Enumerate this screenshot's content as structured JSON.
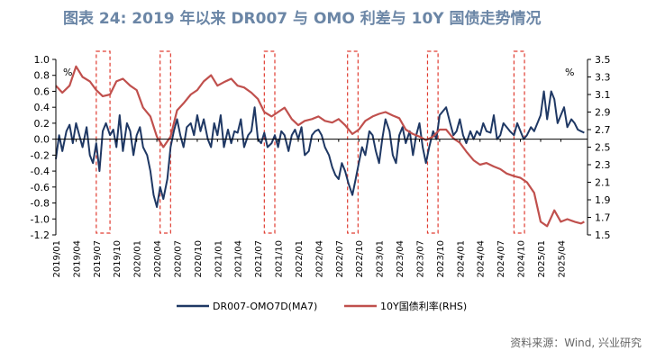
{
  "title": "图表 24: 2019 年以来 DR007 与 OMO 利差与 10Y 国债走势情况",
  "source": "资料来源：Wind, 兴业研究",
  "chart_data": {
    "type": "line",
    "title": "图表 24: 2019 年以来 DR007 与 OMO 利差与 10Y 国债走势情况",
    "left_unit": "%",
    "right_unit": "%",
    "ylim_left": [
      -1.2,
      1.0
    ],
    "ylim_right": [
      1.5,
      3.5
    ],
    "yticks_left": [
      "1.0",
      "0.8",
      "0.6",
      "0.4",
      "0.2",
      "0.0",
      "-0.2",
      "-0.4",
      "-0.6",
      "-0.8",
      "-1.0",
      "-1.2"
    ],
    "yticks_right": [
      "3.5",
      "3.3",
      "3.1",
      "2.9",
      "2.7",
      "2.5",
      "2.3",
      "2.1",
      "1.9",
      "1.7",
      "1.5"
    ],
    "x_ticks": [
      "2019/01",
      "2019/04",
      "2019/07",
      "2019/10",
      "2020/01",
      "2020/04",
      "2020/07",
      "2020/10",
      "2021/01",
      "2021/04",
      "2021/07",
      "2021/10",
      "2022/01",
      "2022/04",
      "2022/07",
      "2022/10",
      "2023/01",
      "2023/04",
      "2023/07",
      "2023/10",
      "2024/01",
      "2024/04",
      "2024/07",
      "2024/10",
      "2025/01",
      "2025/04"
    ],
    "x_range": [
      2019.0,
      2025.58
    ],
    "grid": false,
    "legend_position": "bottom",
    "highlight_periods": [
      [
        2019.5,
        2019.67
      ],
      [
        2020.29,
        2020.42
      ],
      [
        2021.58,
        2021.71
      ],
      [
        2022.61,
        2022.74
      ],
      [
        2023.6,
        2023.73
      ],
      [
        2024.67,
        2024.8
      ]
    ],
    "colors": {
      "spread": "#1f3864",
      "yield": "#c0504d",
      "highlight": "#e03c31",
      "axis": "#000000"
    },
    "series": [
      {
        "name": "DR007-OMO7D(MA7)",
        "axis": "left",
        "x": [
          2019.0,
          2019.04,
          2019.08,
          2019.13,
          2019.17,
          2019.21,
          2019.25,
          2019.29,
          2019.33,
          2019.38,
          2019.42,
          2019.46,
          2019.5,
          2019.54,
          2019.58,
          2019.62,
          2019.67,
          2019.71,
          2019.75,
          2019.79,
          2019.83,
          2019.88,
          2019.92,
          2019.96,
          2020.0,
          2020.04,
          2020.08,
          2020.13,
          2020.17,
          2020.21,
          2020.25,
          2020.29,
          2020.33,
          2020.38,
          2020.42,
          2020.46,
          2020.5,
          2020.54,
          2020.58,
          2020.62,
          2020.67,
          2020.71,
          2020.75,
          2020.79,
          2020.83,
          2020.88,
          2020.92,
          2020.96,
          2021.0,
          2021.04,
          2021.08,
          2021.13,
          2021.17,
          2021.21,
          2021.25,
          2021.29,
          2021.33,
          2021.38,
          2021.42,
          2021.46,
          2021.5,
          2021.54,
          2021.58,
          2021.62,
          2021.67,
          2021.71,
          2021.75,
          2021.79,
          2021.83,
          2021.88,
          2021.92,
          2021.96,
          2022.0,
          2022.04,
          2022.08,
          2022.13,
          2022.17,
          2022.21,
          2022.25,
          2022.29,
          2022.33,
          2022.38,
          2022.42,
          2022.46,
          2022.5,
          2022.54,
          2022.58,
          2022.62,
          2022.67,
          2022.71,
          2022.75,
          2022.79,
          2022.83,
          2022.88,
          2022.92,
          2022.96,
          2023.0,
          2023.04,
          2023.08,
          2023.13,
          2023.17,
          2023.21,
          2023.25,
          2023.29,
          2023.33,
          2023.38,
          2023.42,
          2023.46,
          2023.5,
          2023.54,
          2023.58,
          2023.62,
          2023.67,
          2023.71,
          2023.75,
          2023.79,
          2023.83,
          2023.88,
          2023.92,
          2023.96,
          2024.0,
          2024.04,
          2024.08,
          2024.13,
          2024.17,
          2024.21,
          2024.25,
          2024.29,
          2024.33,
          2024.38,
          2024.42,
          2024.46,
          2024.5,
          2024.54,
          2024.58,
          2024.62,
          2024.67,
          2024.71,
          2024.75,
          2024.79,
          2024.83,
          2024.88,
          2024.92,
          2024.96,
          2025.0,
          2025.04,
          2025.08,
          2025.13,
          2025.17,
          2025.21,
          2025.25,
          2025.29,
          2025.33,
          2025.38,
          2025.42,
          2025.46,
          2025.5,
          2025.54
        ],
        "values": [
          -0.25,
          0.05,
          -0.15,
          0.1,
          0.18,
          -0.05,
          0.2,
          0.05,
          -0.1,
          0.15,
          -0.2,
          -0.3,
          -0.05,
          -0.4,
          0.1,
          0.2,
          0.05,
          0.12,
          -0.1,
          0.3,
          -0.15,
          0.2,
          0.1,
          -0.2,
          0.05,
          0.15,
          -0.1,
          -0.2,
          -0.4,
          -0.7,
          -0.85,
          -0.6,
          -0.75,
          -0.5,
          -0.1,
          0.1,
          0.25,
          0.05,
          -0.1,
          0.15,
          0.2,
          0.05,
          0.3,
          0.1,
          0.25,
          0.0,
          -0.1,
          0.2,
          0.05,
          0.3,
          -0.1,
          0.12,
          -0.05,
          0.1,
          0.08,
          0.25,
          -0.1,
          0.05,
          0.1,
          0.4,
          0.0,
          -0.05,
          0.08,
          -0.1,
          -0.05,
          0.05,
          -0.1,
          0.1,
          0.05,
          -0.15,
          0.05,
          0.12,
          0.0,
          0.15,
          -0.2,
          -0.15,
          0.05,
          0.1,
          0.12,
          0.05,
          -0.1,
          -0.2,
          -0.35,
          -0.45,
          -0.5,
          -0.3,
          -0.4,
          -0.55,
          -0.7,
          -0.5,
          -0.3,
          -0.1,
          -0.2,
          0.1,
          0.05,
          -0.15,
          -0.3,
          0.0,
          0.25,
          0.1,
          -0.2,
          -0.3,
          0.05,
          0.15,
          -0.05,
          0.1,
          -0.2,
          0.05,
          0.2,
          -0.1,
          -0.3,
          -0.1,
          0.1,
          0.0,
          0.3,
          0.35,
          0.4,
          0.2,
          0.05,
          0.1,
          0.25,
          0.05,
          -0.05,
          0.1,
          0.0,
          0.1,
          0.05,
          0.2,
          0.1,
          0.08,
          0.3,
          0.0,
          0.05,
          0.2,
          0.15,
          0.1,
          0.05,
          0.2,
          0.1,
          0.0,
          0.05,
          0.15,
          0.1,
          0.2,
          0.3,
          0.6,
          0.25,
          0.6,
          0.5,
          0.2,
          0.3,
          0.4,
          0.15,
          0.25,
          0.2,
          0.12,
          0.1,
          0.08
        ]
      },
      {
        "name": "10Y国债利率(RHS)",
        "axis": "right",
        "x": [
          2019.0,
          2019.08,
          2019.17,
          2019.25,
          2019.33,
          2019.42,
          2019.5,
          2019.58,
          2019.67,
          2019.75,
          2019.83,
          2019.92,
          2020.0,
          2020.08,
          2020.17,
          2020.25,
          2020.33,
          2020.42,
          2020.5,
          2020.58,
          2020.67,
          2020.75,
          2020.83,
          2020.92,
          2021.0,
          2021.08,
          2021.17,
          2021.25,
          2021.33,
          2021.42,
          2021.5,
          2021.58,
          2021.67,
          2021.75,
          2021.83,
          2021.92,
          2022.0,
          2022.08,
          2022.17,
          2022.25,
          2022.33,
          2022.42,
          2022.5,
          2022.58,
          2022.67,
          2022.75,
          2022.83,
          2022.92,
          2023.0,
          2023.08,
          2023.17,
          2023.25,
          2023.33,
          2023.42,
          2023.5,
          2023.58,
          2023.67,
          2023.75,
          2023.83,
          2023.92,
          2024.0,
          2024.08,
          2024.17,
          2024.25,
          2024.33,
          2024.42,
          2024.5,
          2024.58,
          2024.67,
          2024.75,
          2024.83,
          2024.92,
          2025.0,
          2025.08,
          2025.17,
          2025.25,
          2025.33,
          2025.42,
          2025.5,
          2025.54
        ],
        "values": [
          3.2,
          3.12,
          3.2,
          3.42,
          3.3,
          3.25,
          3.15,
          3.08,
          3.1,
          3.25,
          3.28,
          3.2,
          3.15,
          2.95,
          2.85,
          2.62,
          2.5,
          2.62,
          2.92,
          3.0,
          3.1,
          3.15,
          3.25,
          3.32,
          3.2,
          3.24,
          3.28,
          3.2,
          3.18,
          3.12,
          3.05,
          2.9,
          2.85,
          2.9,
          2.95,
          2.82,
          2.75,
          2.8,
          2.82,
          2.85,
          2.8,
          2.78,
          2.82,
          2.75,
          2.65,
          2.7,
          2.8,
          2.85,
          2.88,
          2.9,
          2.86,
          2.83,
          2.7,
          2.65,
          2.62,
          2.58,
          2.62,
          2.7,
          2.7,
          2.6,
          2.55,
          2.45,
          2.35,
          2.3,
          2.32,
          2.28,
          2.25,
          2.2,
          2.17,
          2.15,
          2.1,
          1.98,
          1.65,
          1.6,
          1.78,
          1.65,
          1.68,
          1.65,
          1.63,
          1.65
        ]
      }
    ]
  }
}
